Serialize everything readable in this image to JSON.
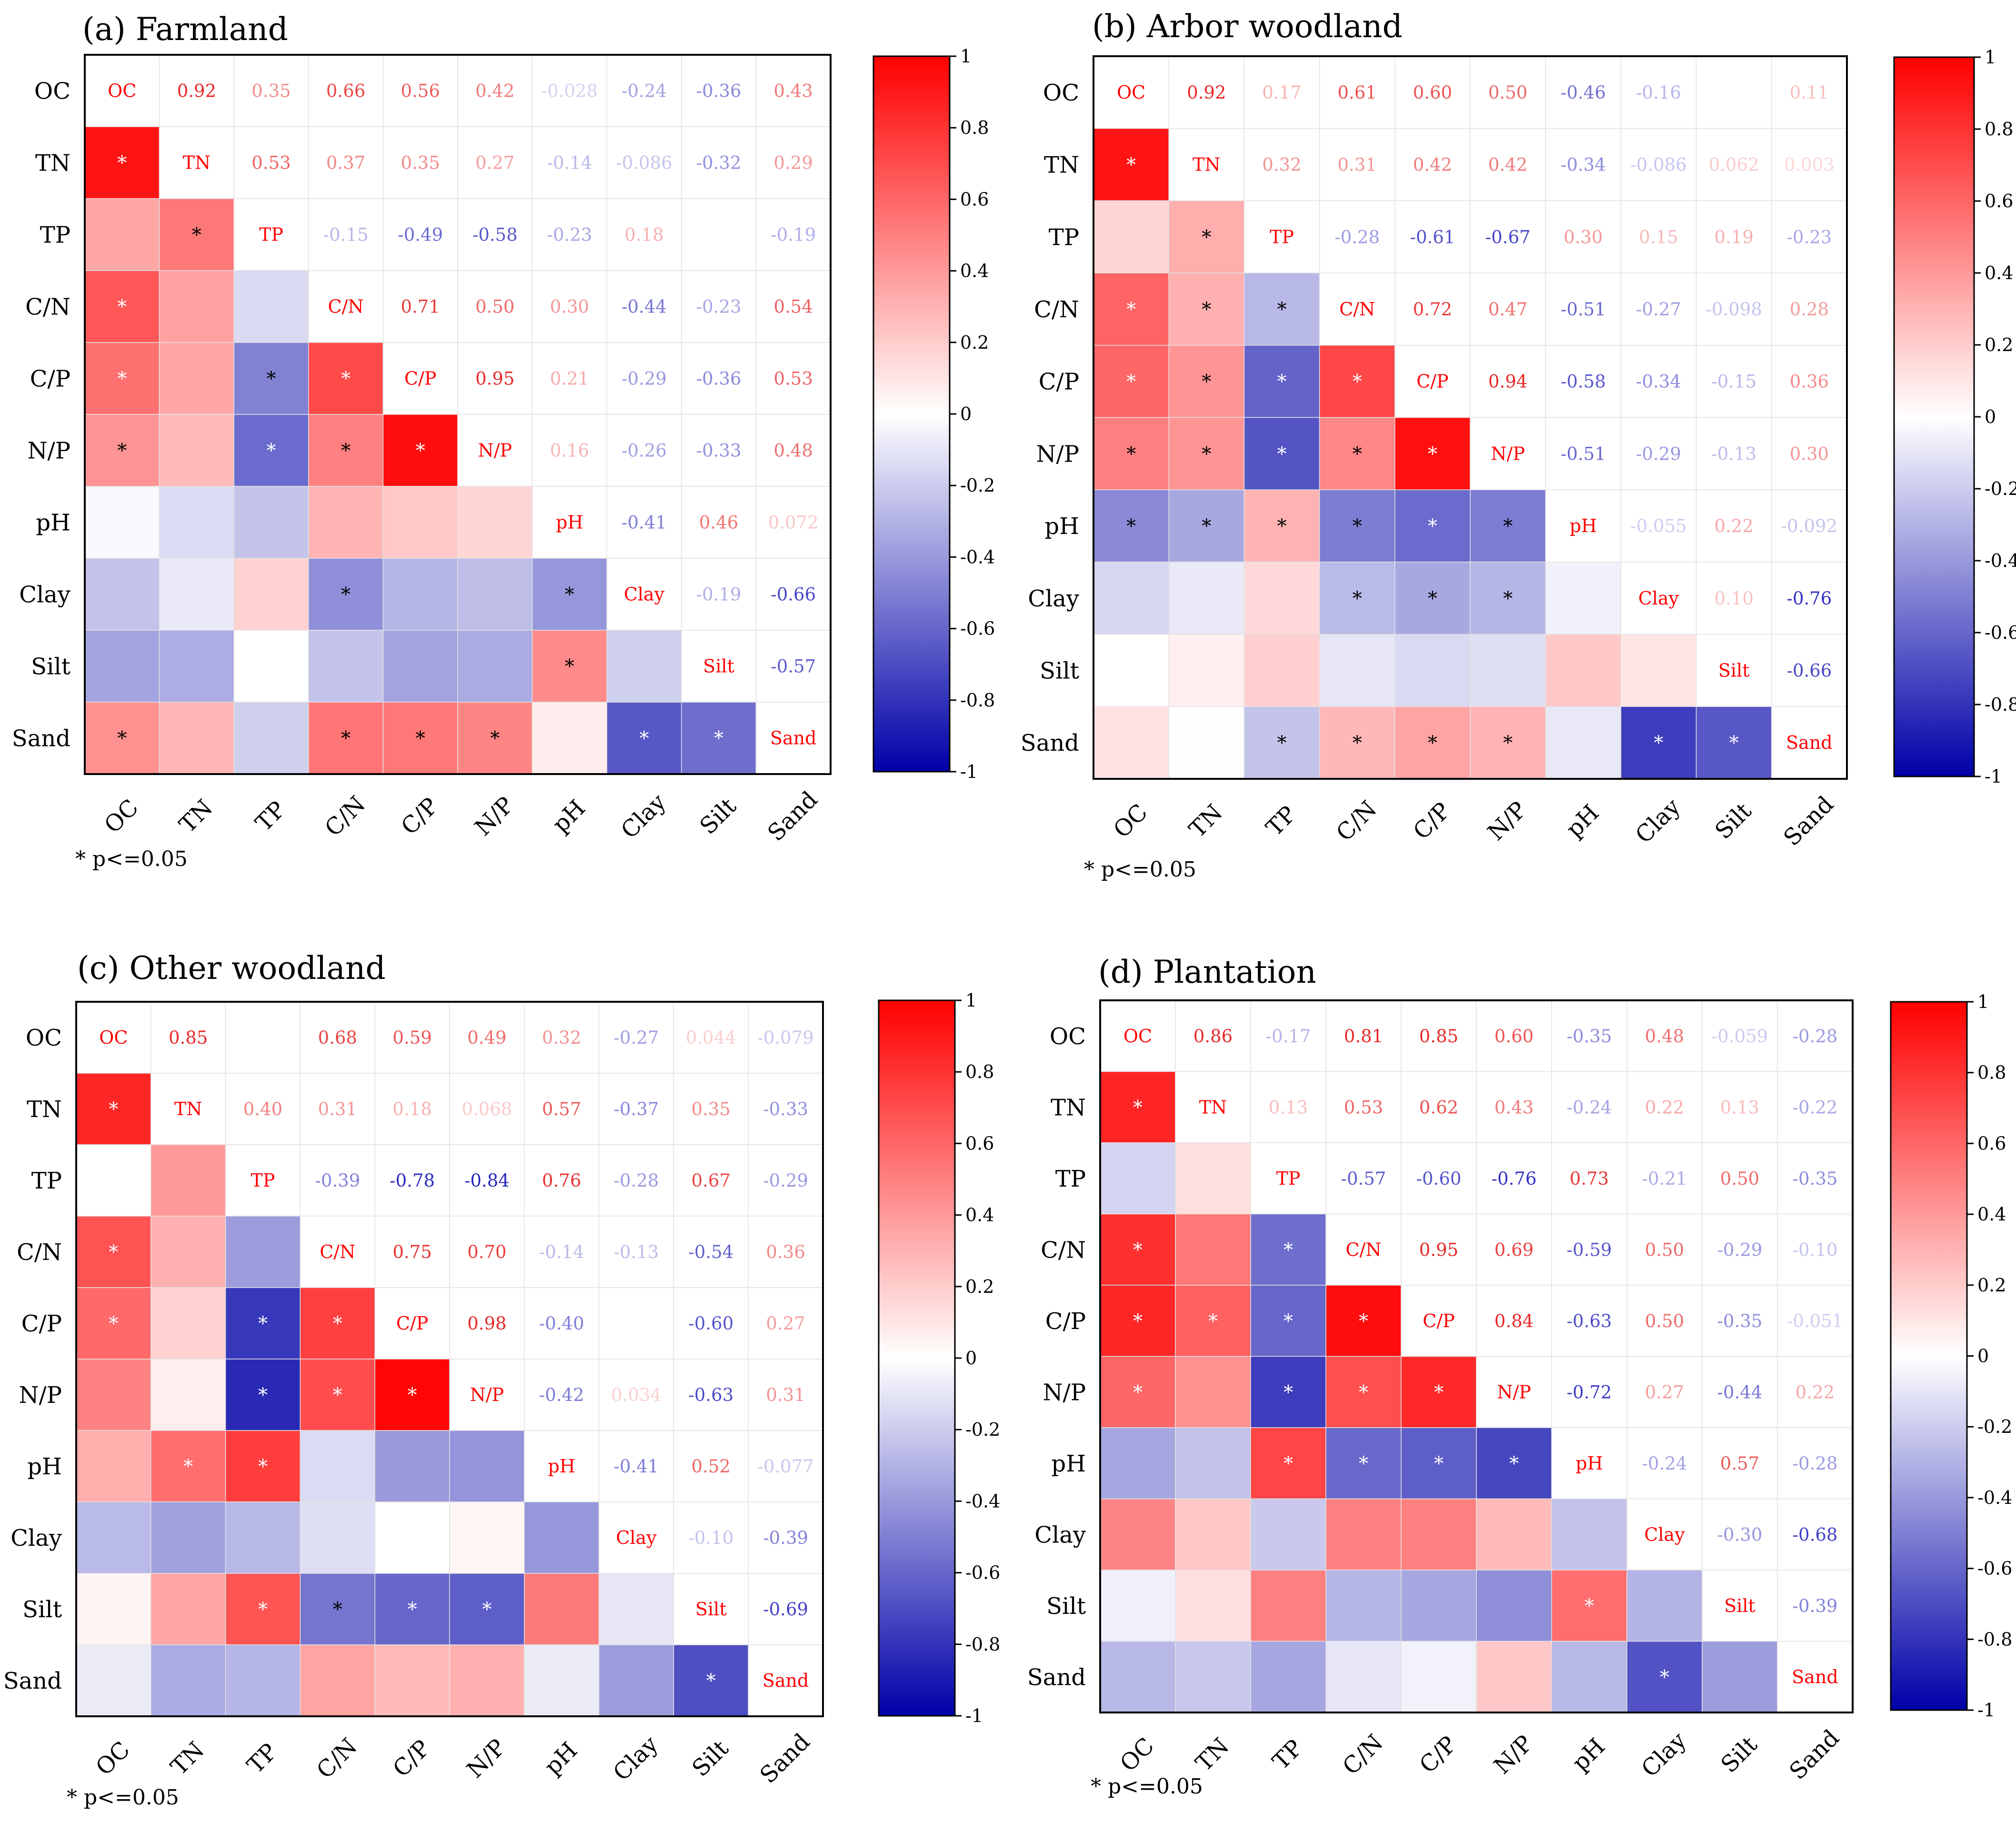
{
  "figure": {
    "footnote": "* p<=0.05",
    "colorbar_ticks": [
      "1",
      "0.8",
      "0.6",
      "0.4",
      "0.2",
      "0",
      "-0.2",
      "-0.4",
      "-0.6",
      "-0.8",
      "-1"
    ],
    "colors": {
      "positive": "#ff0000",
      "zero": "#ffffff",
      "negative": "#0000a8",
      "diagonal_text": "#ff0000"
    }
  },
  "chart_data": [
    {
      "type": "heatmap",
      "title": "(a) Farmland",
      "variables": [
        "OC",
        "TN",
        "TP",
        "C/N",
        "C/P",
        "N/P",
        "pH",
        "Clay",
        "Silt",
        "Sand"
      ],
      "clim": [
        -1,
        1
      ],
      "matrix": [
        [
          1,
          0.92,
          0.35,
          0.66,
          0.56,
          0.42,
          -0.028,
          -0.24,
          -0.36,
          0.43
        ],
        [
          0.92,
          1,
          0.53,
          0.37,
          0.35,
          0.27,
          -0.14,
          -0.086,
          -0.32,
          0.29
        ],
        [
          0.35,
          0.53,
          1,
          -0.15,
          -0.49,
          -0.58,
          -0.23,
          0.18,
          null,
          -0.19
        ],
        [
          0.66,
          0.37,
          -0.15,
          1,
          0.71,
          0.5,
          0.3,
          -0.44,
          -0.23,
          0.54
        ],
        [
          0.56,
          0.35,
          -0.49,
          0.71,
          1,
          0.95,
          0.21,
          -0.29,
          -0.36,
          0.53
        ],
        [
          0.42,
          0.27,
          -0.58,
          0.5,
          0.95,
          1,
          0.16,
          -0.26,
          -0.33,
          0.48
        ],
        [
          -0.028,
          -0.14,
          -0.23,
          0.3,
          0.21,
          0.16,
          1,
          -0.41,
          0.46,
          0.072
        ],
        [
          -0.24,
          -0.086,
          0.18,
          -0.44,
          -0.29,
          -0.26,
          -0.41,
          1,
          -0.19,
          -0.66
        ],
        [
          -0.36,
          -0.32,
          null,
          -0.23,
          -0.36,
          -0.33,
          0.46,
          -0.19,
          1,
          -0.57
        ],
        [
          0.43,
          0.29,
          -0.19,
          0.54,
          0.53,
          0.48,
          0.072,
          -0.66,
          -0.57,
          1
        ]
      ],
      "significant": [
        [
          1,
          0
        ],
        [
          2,
          1
        ],
        [
          3,
          0
        ],
        [
          4,
          0
        ],
        [
          4,
          2
        ],
        [
          4,
          3
        ],
        [
          5,
          0
        ],
        [
          5,
          2
        ],
        [
          5,
          3
        ],
        [
          5,
          4
        ],
        [
          7,
          3
        ],
        [
          7,
          6
        ],
        [
          8,
          6
        ],
        [
          9,
          0
        ],
        [
          9,
          3
        ],
        [
          9,
          4
        ],
        [
          9,
          5
        ],
        [
          9,
          7
        ],
        [
          9,
          8
        ]
      ]
    },
    {
      "type": "heatmap",
      "title": "(b) Arbor woodland",
      "variables": [
        "OC",
        "TN",
        "TP",
        "C/N",
        "C/P",
        "N/P",
        "pH",
        "Clay",
        "Silt",
        "Sand"
      ],
      "clim": [
        -1,
        1
      ],
      "matrix": [
        [
          1,
          0.92,
          0.17,
          0.61,
          0.6,
          0.5,
          -0.46,
          -0.16,
          null,
          0.11
        ],
        [
          0.92,
          1,
          0.32,
          0.31,
          0.42,
          0.42,
          -0.34,
          -0.086,
          0.062,
          0.003
        ],
        [
          0.17,
          0.32,
          1,
          -0.28,
          -0.61,
          -0.67,
          0.3,
          0.15,
          0.19,
          -0.23
        ],
        [
          0.61,
          0.31,
          -0.28,
          1,
          0.72,
          0.47,
          -0.51,
          -0.27,
          -0.098,
          0.28
        ],
        [
          0.6,
          0.42,
          -0.61,
          0.72,
          1,
          0.94,
          -0.58,
          -0.34,
          -0.15,
          0.36
        ],
        [
          0.5,
          0.42,
          -0.67,
          0.47,
          0.94,
          1,
          -0.51,
          -0.29,
          -0.13,
          0.3
        ],
        [
          -0.46,
          -0.34,
          0.3,
          -0.51,
          -0.58,
          -0.51,
          1,
          -0.055,
          0.22,
          -0.092
        ],
        [
          -0.16,
          -0.086,
          0.15,
          -0.27,
          -0.34,
          -0.29,
          -0.055,
          1,
          0.1,
          -0.76
        ],
        [
          null,
          0.062,
          0.19,
          -0.098,
          -0.15,
          -0.13,
          0.22,
          0.1,
          1,
          -0.66
        ],
        [
          0.11,
          0.003,
          -0.23,
          0.28,
          0.36,
          0.3,
          -0.092,
          -0.76,
          -0.66,
          1
        ]
      ],
      "significant": [
        [
          1,
          0
        ],
        [
          2,
          1
        ],
        [
          3,
          0
        ],
        [
          3,
          1
        ],
        [
          3,
          2
        ],
        [
          4,
          0
        ],
        [
          4,
          1
        ],
        [
          4,
          2
        ],
        [
          4,
          3
        ],
        [
          5,
          0
        ],
        [
          5,
          1
        ],
        [
          5,
          2
        ],
        [
          5,
          3
        ],
        [
          5,
          4
        ],
        [
          6,
          0
        ],
        [
          6,
          1
        ],
        [
          6,
          2
        ],
        [
          6,
          3
        ],
        [
          6,
          4
        ],
        [
          6,
          5
        ],
        [
          7,
          3
        ],
        [
          7,
          4
        ],
        [
          7,
          5
        ],
        [
          9,
          2
        ],
        [
          9,
          3
        ],
        [
          9,
          4
        ],
        [
          9,
          5
        ],
        [
          9,
          7
        ],
        [
          9,
          8
        ]
      ]
    },
    {
      "type": "heatmap",
      "title": "(c) Other woodland",
      "variables": [
        "OC",
        "TN",
        "TP",
        "C/N",
        "C/P",
        "N/P",
        "pH",
        "Clay",
        "Silt",
        "Sand"
      ],
      "clim": [
        -1,
        1
      ],
      "matrix": [
        [
          1,
          0.85,
          null,
          0.68,
          0.59,
          0.49,
          0.32,
          -0.27,
          0.044,
          -0.079
        ],
        [
          0.85,
          1,
          0.4,
          0.31,
          0.18,
          0.068,
          0.57,
          -0.37,
          0.35,
          -0.33
        ],
        [
          null,
          0.4,
          1,
          -0.39,
          -0.78,
          -0.84,
          0.76,
          -0.28,
          0.67,
          -0.29
        ],
        [
          0.68,
          0.31,
          -0.39,
          1,
          0.75,
          0.7,
          -0.14,
          -0.13,
          -0.54,
          0.36
        ],
        [
          0.59,
          0.18,
          -0.78,
          0.75,
          1,
          0.98,
          -0.4,
          null,
          -0.6,
          0.27
        ],
        [
          0.49,
          0.068,
          -0.84,
          0.7,
          0.98,
          1,
          -0.42,
          0.034,
          -0.63,
          0.31
        ],
        [
          0.32,
          0.57,
          0.76,
          -0.14,
          -0.4,
          -0.42,
          1,
          -0.41,
          0.52,
          -0.077
        ],
        [
          -0.27,
          -0.37,
          -0.28,
          -0.13,
          null,
          0.034,
          -0.41,
          1,
          -0.1,
          -0.39
        ],
        [
          0.044,
          0.35,
          0.67,
          -0.54,
          -0.6,
          -0.63,
          0.52,
          -0.1,
          1,
          -0.69
        ],
        [
          -0.079,
          -0.33,
          -0.29,
          0.36,
          0.27,
          0.31,
          -0.077,
          -0.39,
          -0.69,
          1
        ]
      ],
      "significant": [
        [
          1,
          0
        ],
        [
          3,
          0
        ],
        [
          4,
          0
        ],
        [
          4,
          2
        ],
        [
          4,
          3
        ],
        [
          5,
          2
        ],
        [
          5,
          3
        ],
        [
          5,
          4
        ],
        [
          6,
          1
        ],
        [
          6,
          2
        ],
        [
          8,
          2
        ],
        [
          8,
          3
        ],
        [
          8,
          4
        ],
        [
          8,
          5
        ],
        [
          9,
          8
        ]
      ]
    },
    {
      "type": "heatmap",
      "title": "(d) Plantation",
      "variables": [
        "OC",
        "TN",
        "TP",
        "C/N",
        "C/P",
        "N/P",
        "pH",
        "Clay",
        "Silt",
        "Sand"
      ],
      "clim": [
        -1,
        1
      ],
      "matrix": [
        [
          1,
          0.86,
          -0.17,
          0.81,
          0.85,
          0.6,
          -0.35,
          0.48,
          -0.059,
          -0.28
        ],
        [
          0.86,
          1,
          0.13,
          0.53,
          0.62,
          0.43,
          -0.24,
          0.22,
          0.13,
          -0.22
        ],
        [
          -0.17,
          0.13,
          1,
          -0.57,
          -0.6,
          -0.76,
          0.73,
          -0.21,
          0.5,
          -0.35
        ],
        [
          0.81,
          0.53,
          -0.57,
          1,
          0.95,
          0.69,
          -0.59,
          0.5,
          -0.29,
          -0.1
        ],
        [
          0.85,
          0.62,
          -0.6,
          0.95,
          1,
          0.84,
          -0.63,
          0.5,
          -0.35,
          -0.051
        ],
        [
          0.6,
          0.43,
          -0.76,
          0.69,
          0.84,
          1,
          -0.72,
          0.27,
          -0.44,
          0.22
        ],
        [
          -0.35,
          -0.24,
          0.73,
          -0.59,
          -0.63,
          -0.72,
          1,
          -0.24,
          0.57,
          -0.28
        ],
        [
          0.48,
          0.22,
          -0.21,
          0.5,
          0.5,
          0.27,
          -0.24,
          1,
          -0.3,
          -0.68
        ],
        [
          -0.059,
          0.13,
          0.5,
          -0.29,
          -0.35,
          -0.44,
          0.57,
          -0.3,
          1,
          -0.39
        ],
        [
          -0.28,
          -0.22,
          -0.35,
          -0.1,
          -0.051,
          0.22,
          -0.28,
          -0.68,
          -0.39,
          1
        ]
      ],
      "significant": [
        [
          1,
          0
        ],
        [
          3,
          0
        ],
        [
          3,
          2
        ],
        [
          4,
          0
        ],
        [
          4,
          1
        ],
        [
          4,
          2
        ],
        [
          4,
          3
        ],
        [
          5,
          0
        ],
        [
          5,
          2
        ],
        [
          5,
          3
        ],
        [
          5,
          4
        ],
        [
          6,
          2
        ],
        [
          6,
          3
        ],
        [
          6,
          4
        ],
        [
          6,
          5
        ],
        [
          8,
          6
        ],
        [
          9,
          7
        ]
      ]
    }
  ]
}
